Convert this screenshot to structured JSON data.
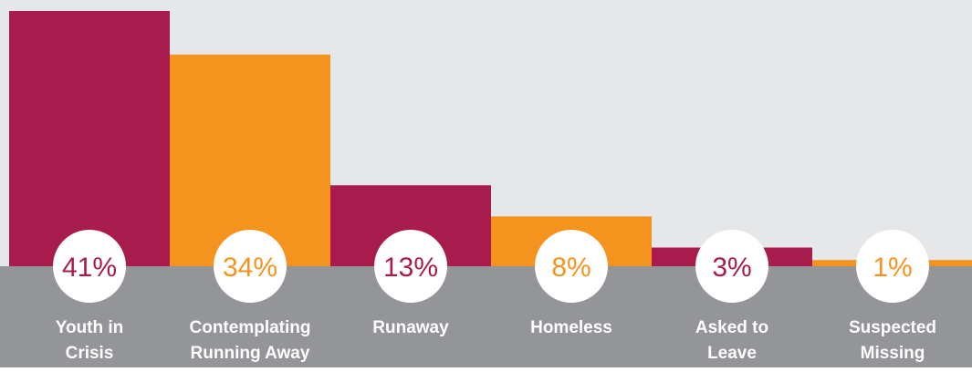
{
  "chart_data": {
    "type": "bar",
    "categories": [
      "Youth in\nCrisis",
      "Contemplating\nRunning Away",
      "Runaway",
      "Homeless",
      "Asked to\nLeave",
      "Suspected\nMissing"
    ],
    "values": [
      41,
      34,
      13,
      8,
      3,
      1
    ],
    "value_labels": [
      "41%",
      "34%",
      "13%",
      "8%",
      "3%",
      "1%"
    ],
    "ylim": [
      0,
      41
    ],
    "colors": {
      "crimson": "#A71C4D",
      "orange": "#F4941F",
      "plot_background": "#E6E7E8",
      "label_band": "#939598",
      "badge": "#FFFFFF"
    },
    "bar_color_cycle": [
      "crimson",
      "orange"
    ]
  }
}
